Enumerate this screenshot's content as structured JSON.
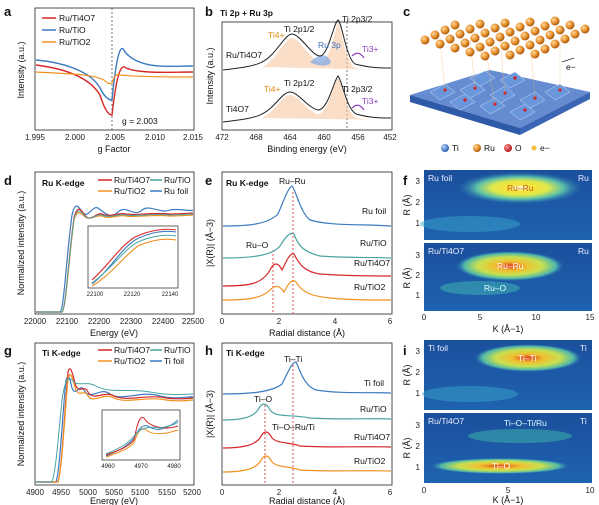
{
  "colors": {
    "red": "#d62728",
    "blue": "#3b7bbf",
    "orange": "#f0901e",
    "teal": "#4aa3a3",
    "black": "#222222"
  },
  "panels": {
    "a": {
      "label": "a",
      "legend": [
        "Ru/Ti4O7",
        "Ru/TiO",
        "Ru/TiO2"
      ],
      "xlabel": "g Factor",
      "ylabel": "Intensity (a.u.)",
      "ticks": [
        "1.995",
        "2.000",
        "2.005",
        "2.010",
        "2.015"
      ],
      "annotation": "g = 2.003"
    },
    "b": {
      "label": "b",
      "header": "Ti 2p + Ru 3p",
      "xlabel": "Binding energy (eV)",
      "ylabel": "Intensity (a.u.)",
      "ticks": [
        "472",
        "468",
        "464",
        "460",
        "456",
        "452"
      ],
      "samples": [
        "Ru/Ti4O7",
        "Ti4O7"
      ],
      "peaks": [
        "Ti4+",
        "Ti 2p1/2",
        "Ru 3p",
        "Ti 2p3/2",
        "Ti3+"
      ]
    },
    "c": {
      "label": "c",
      "legend": [
        "Ti",
        "Ru",
        "O",
        "e−"
      ],
      "electron": "e−"
    },
    "d": {
      "label": "d",
      "header": "Ru K-edge",
      "legend": [
        "Ru/Ti4O7",
        "Ru/TiO2",
        "Ru/TiO",
        "Ru foil"
      ],
      "xlabel": "Energy (eV)",
      "ylabel": "Normalized intensity (a.u.)",
      "ticks": [
        "22000",
        "22100",
        "22200",
        "22300",
        "22400",
        "22500"
      ],
      "inset_ticks": [
        "22100",
        "22120",
        "22140"
      ]
    },
    "e": {
      "label": "e",
      "header": "Ru K-edge",
      "xlabel": "Radial distance (Å)",
      "ylabel": "|X(R)| (Å−3)",
      "ticks": [
        "0",
        "2",
        "4",
        "6"
      ],
      "traces": [
        "Ru foil",
        "Ru/TiO",
        "Ru/Ti4O7",
        "Ru/TiO2"
      ],
      "peaks": [
        "Ru–Ru",
        "Ru–O"
      ]
    },
    "f": {
      "label": "f",
      "xlabel": "K (Å−1)",
      "ylabel": "R (Å)",
      "ticks": [
        "0",
        "5",
        "10",
        "15"
      ],
      "yticks": [
        "1",
        "2",
        "3"
      ],
      "maps": [
        {
          "name": "Ru foil",
          "corner": "Ru",
          "peak": "Ru–Ru"
        },
        {
          "name": "Ru/Ti4O7",
          "corner": "Ru",
          "peak": "Ru–Ru",
          "peak2": "Ru–O"
        }
      ]
    },
    "g": {
      "label": "g",
      "header": "Ti K-edge",
      "legend": [
        "Ru/Ti4O7",
        "Ru/TiO2",
        "Ru/TiO",
        "Ti foil"
      ],
      "xlabel": "Energy (eV)",
      "ylabel": "Normalized intensity (a.u.)",
      "ticks": [
        "4900",
        "4950",
        "5000",
        "5050",
        "5100",
        "5150",
        "5200"
      ],
      "inset_ticks": [
        "4960",
        "4970",
        "4980"
      ]
    },
    "h": {
      "label": "h",
      "header": "Ti K-edge",
      "xlabel": "Radial distance (Å)",
      "ylabel": "|X(R)| (Å−3)",
      "ticks": [
        "0",
        "2",
        "4",
        "6"
      ],
      "traces": [
        "Ti foil",
        "Ru/TiO",
        "Ru/Ti4O7",
        "Ru/TiO2"
      ],
      "peaks": [
        "Ti–Ti",
        "Ti–O",
        "Ti–O–Ru/Ti"
      ]
    },
    "i": {
      "label": "i",
      "xlabel": "K (Å−1)",
      "ylabel": "R (Å)",
      "ticks": [
        "0",
        "5",
        "10"
      ],
      "yticks": [
        "1",
        "2",
        "3"
      ],
      "maps": [
        {
          "name": "Ti foil",
          "corner": "Ti",
          "peak": "Ti–Ti"
        },
        {
          "name": "Ru/Ti4O7",
          "corner": "Ti",
          "peak": "Ti–O",
          "peak2": "Ti–O–Ti/Ru"
        }
      ]
    }
  }
}
